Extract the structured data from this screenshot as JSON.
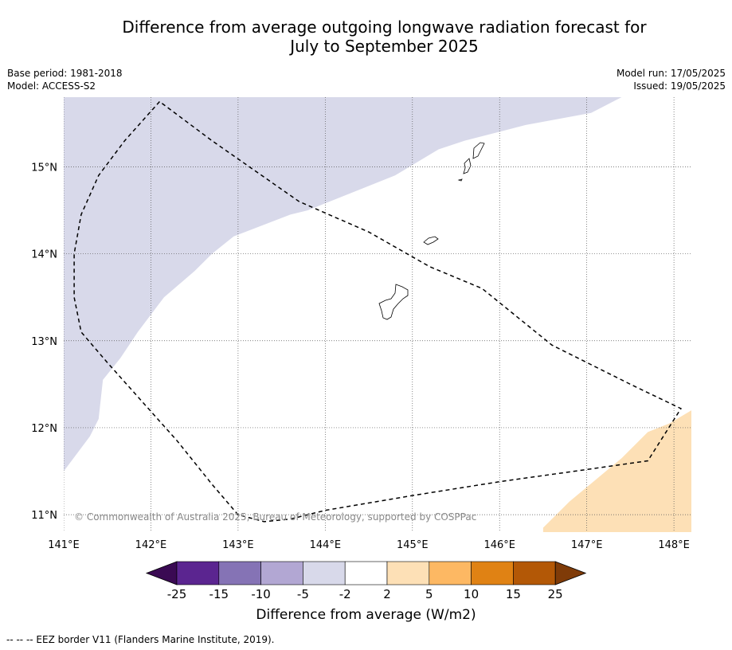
{
  "title_line1": "Difference from average outgoing longwave radiation forecast for",
  "title_line2": "July to September 2025",
  "meta_left": [
    "Base period: 1981-2018",
    "Model: ACCESS-S2"
  ],
  "meta_right": [
    "Model run: 17/05/2025",
    "Issued: 19/05/2025"
  ],
  "map": {
    "lon_range": [
      141.0,
      148.2
    ],
    "lat_range": [
      10.8,
      15.8
    ],
    "lon_ticks": [
      141,
      142,
      143,
      144,
      145,
      146,
      147,
      148
    ],
    "lon_tick_labels": [
      "141°E",
      "142°E",
      "143°E",
      "144°E",
      "145°E",
      "146°E",
      "147°E",
      "148°E"
    ],
    "lat_ticks": [
      11,
      12,
      13,
      14,
      15
    ],
    "lat_tick_labels": [
      "11°N",
      "12°N",
      "13°N",
      "14°N",
      "15°N"
    ],
    "gridlines": true,
    "copyright": "© Commonwealth of Australia 2025, Bureau of Meteorology, supported by COSPPac",
    "anomaly_regions": [
      {
        "category": "-5 to -2",
        "color": "#d8d9ea",
        "polygon_lonlat": [
          [
            141.0,
            15.8
          ],
          [
            147.4,
            15.8
          ],
          [
            147.05,
            15.62
          ],
          [
            146.3,
            15.48
          ],
          [
            145.6,
            15.3
          ],
          [
            145.3,
            15.2
          ],
          [
            144.8,
            14.9
          ],
          [
            144.3,
            14.7
          ],
          [
            143.8,
            14.5
          ],
          [
            143.6,
            14.45
          ],
          [
            142.95,
            14.2
          ],
          [
            142.7,
            14.0
          ],
          [
            142.5,
            13.8
          ],
          [
            142.15,
            13.5
          ],
          [
            141.85,
            13.1
          ],
          [
            141.65,
            12.8
          ],
          [
            141.45,
            12.55
          ],
          [
            141.4,
            12.1
          ],
          [
            141.3,
            11.9
          ],
          [
            141.0,
            11.5
          ]
        ]
      },
      {
        "category": "2 to 5",
        "color": "#fde0b6",
        "polygon_lonlat": [
          [
            146.5,
            10.8
          ],
          [
            148.2,
            10.8
          ],
          [
            148.2,
            12.2
          ],
          [
            147.95,
            12.05
          ],
          [
            147.7,
            11.95
          ],
          [
            147.4,
            11.65
          ],
          [
            147.1,
            11.4
          ],
          [
            146.8,
            11.15
          ],
          [
            146.5,
            10.85
          ]
        ]
      }
    ],
    "eez_border_lonlat": [
      [
        142.1,
        15.75
      ],
      [
        141.7,
        15.3
      ],
      [
        141.4,
        14.9
      ],
      [
        141.2,
        14.45
      ],
      [
        141.12,
        14.0
      ],
      [
        141.12,
        13.5
      ],
      [
        141.2,
        13.1
      ],
      [
        141.5,
        12.75
      ],
      [
        141.9,
        12.3
      ],
      [
        142.3,
        11.85
      ],
      [
        142.7,
        11.35
      ],
      [
        143.0,
        11.0
      ],
      [
        143.3,
        10.92
      ],
      [
        143.6,
        10.95
      ],
      [
        144.0,
        11.05
      ],
      [
        145.0,
        11.22
      ],
      [
        146.0,
        11.38
      ],
      [
        147.0,
        11.52
      ],
      [
        147.7,
        11.62
      ],
      [
        148.08,
        12.22
      ],
      [
        147.5,
        12.5
      ],
      [
        146.6,
        12.95
      ],
      [
        145.8,
        13.6
      ],
      [
        145.2,
        13.85
      ],
      [
        144.5,
        14.25
      ],
      [
        143.7,
        14.6
      ],
      [
        142.7,
        15.3
      ],
      [
        142.1,
        15.75
      ]
    ]
  },
  "colorbar": {
    "label": "Difference from average (W/m2)",
    "tick_labels": [
      "-25",
      "-15",
      "-10",
      "-5",
      "-2",
      "2",
      "5",
      "10",
      "15",
      "25"
    ],
    "colors": [
      "#3a0a53",
      "#5b2590",
      "#8573b5",
      "#b2a7d3",
      "#d8d9ea",
      "#ffffff",
      "#fde0b6",
      "#fdb863",
      "#e08214",
      "#b35806",
      "#7f3b08"
    ]
  },
  "footnote": "--  --  -- EEZ border V11 (Flanders Marine Institute, 2019)."
}
